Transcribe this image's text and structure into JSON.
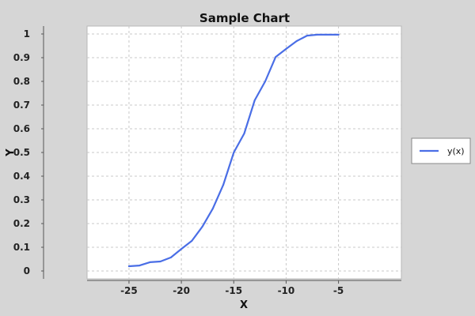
{
  "chart_data": {
    "type": "line",
    "title": "Sample Chart",
    "xlabel": "X",
    "ylabel": "Y",
    "xlim": [
      -29,
      1
    ],
    "ylim": [
      -0.0333,
      1.0333
    ],
    "xticks": [
      -25,
      -20,
      -15,
      -10,
      -5
    ],
    "xtick_labels": [
      "-25",
      "-20",
      "-15",
      "-10",
      "-5"
    ],
    "yticks": [
      0,
      0.1,
      0.2,
      0.3,
      0.4,
      0.5,
      0.6,
      0.7,
      0.8,
      0.9,
      1
    ],
    "ytick_labels": [
      "0",
      "0.1",
      "0.2",
      "0.3",
      "0.4",
      "0.5",
      "0.6",
      "0.7",
      "0.8",
      "0.9",
      "1"
    ],
    "grid": true,
    "legend_position": "right",
    "series": [
      {
        "name": "y(x)",
        "color": "#4a6ee6",
        "x": [
          -25,
          -24,
          -23,
          -22,
          -21,
          -20,
          -19,
          -18,
          -17,
          -16,
          -15,
          -14,
          -13,
          -12,
          -11,
          -10,
          -9,
          -8,
          -7,
          -6,
          -5
        ],
        "y": [
          0.02,
          0.023,
          0.037,
          0.04,
          0.057,
          0.093,
          0.127,
          0.187,
          0.263,
          0.363,
          0.5,
          0.58,
          0.72,
          0.8,
          0.903,
          0.937,
          0.97,
          0.993,
          0.997,
          0.997,
          0.997
        ]
      }
    ]
  }
}
